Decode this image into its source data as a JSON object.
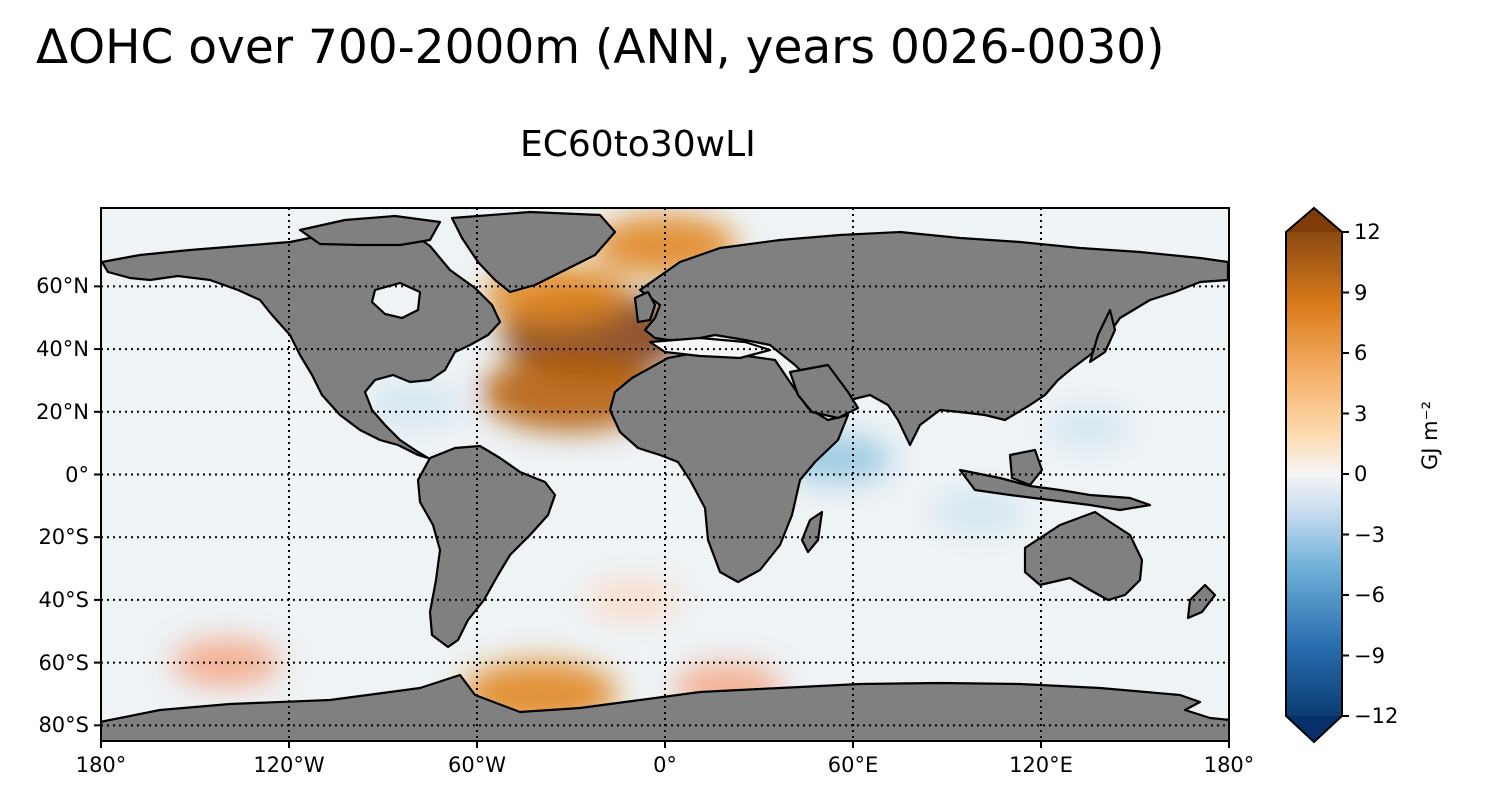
{
  "title": "ΔOHC over 700-2000m (ANN, years 0026-0030)",
  "subtitle": "EC60to30wLI",
  "map": {
    "projection": "PlateCarree",
    "lon_range": [
      -180,
      180
    ],
    "lat_range": [
      -85,
      85
    ],
    "land_color": "#808080",
    "coastline_color": "#000000",
    "grid": "dotted"
  },
  "axes": {
    "y_ticks": [
      {
        "value": 60,
        "label": "60°N"
      },
      {
        "value": 40,
        "label": "40°N"
      },
      {
        "value": 20,
        "label": "20°N"
      },
      {
        "value": 0,
        "label": "0°"
      },
      {
        "value": -20,
        "label": "20°S"
      },
      {
        "value": -40,
        "label": "40°S"
      },
      {
        "value": -60,
        "label": "60°S"
      },
      {
        "value": -80,
        "label": "80°S"
      }
    ],
    "x_ticks": [
      {
        "value": -180,
        "label": "180°"
      },
      {
        "value": -120,
        "label": "120°W"
      },
      {
        "value": -60,
        "label": "60°W"
      },
      {
        "value": 0,
        "label": "0°"
      },
      {
        "value": 60,
        "label": "60°E"
      },
      {
        "value": 120,
        "label": "120°E"
      },
      {
        "value": 180,
        "label": "180°"
      }
    ]
  },
  "colorbar": {
    "min": -12,
    "max": 12,
    "extend": "both",
    "unit_label": "GJ m⁻²",
    "ticks": [
      {
        "value": 12,
        "label": "12"
      },
      {
        "value": 9,
        "label": "9"
      },
      {
        "value": 6,
        "label": "6"
      },
      {
        "value": 3,
        "label": "3"
      },
      {
        "value": 0,
        "label": "0"
      },
      {
        "value": -3,
        "label": "−3"
      },
      {
        "value": -6,
        "label": "−6"
      },
      {
        "value": -9,
        "label": "−9"
      },
      {
        "value": -12,
        "label": "−12"
      }
    ],
    "colors": [
      "#053061",
      "#2166ac",
      "#4393c3",
      "#92c5de",
      "#d1e5f0",
      "#f7f7f7",
      "#fddbc7",
      "#f4a582",
      "#e08214",
      "#b35806",
      "#7f3b08"
    ]
  },
  "anomalies": [
    {
      "name": "north-atlantic-warm-core",
      "lon": -22,
      "lat": 45,
      "value": 11
    },
    {
      "name": "subpolar-atlantic-warm",
      "lon": -35,
      "lat": 57,
      "value": 7
    },
    {
      "name": "subtropical-atlantic-warm",
      "lon": -30,
      "lat": 26,
      "value": 10
    },
    {
      "name": "nordic-seas-warm",
      "lon": 0,
      "lat": 73,
      "value": 7
    },
    {
      "name": "southern-ocean-warm-1",
      "lon": -40,
      "lat": -70,
      "value": 8
    },
    {
      "name": "southern-ocean-warm-2",
      "lon": 20,
      "lat": -68,
      "value": 4
    },
    {
      "name": "south-pacific-warm",
      "lon": -140,
      "lat": -60,
      "value": 4
    },
    {
      "name": "south-atlantic-warm",
      "lon": -10,
      "lat": -40,
      "value": 3
    },
    {
      "name": "indian-ocean-cool",
      "lon": 100,
      "lat": -12,
      "value": -3
    },
    {
      "name": "somali-cool",
      "lon": 55,
      "lat": 5,
      "value": -4
    },
    {
      "name": "gulf-mexico-cool",
      "lon": -80,
      "lat": 22,
      "value": -3
    },
    {
      "name": "west-pacific-cool",
      "lon": 135,
      "lat": 15,
      "value": -2
    }
  ]
}
